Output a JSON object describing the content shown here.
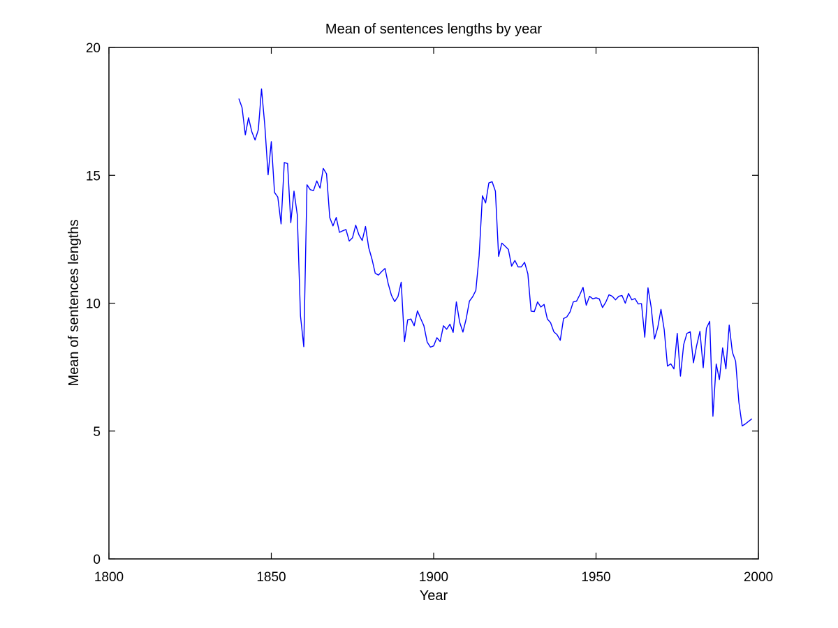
{
  "chart_data": {
    "type": "line",
    "title": "Mean of sentences lengths by year",
    "xlabel": "Year",
    "ylabel": "Mean of sentences lengths",
    "xlim": [
      1800,
      2000
    ],
    "ylim": [
      0,
      20
    ],
    "xticks": [
      1800,
      1850,
      1900,
      1950,
      2000
    ],
    "yticks": [
      0,
      5,
      10,
      15,
      20
    ],
    "xtick_labels": [
      "1800",
      "1850",
      "1900",
      "1950",
      "2000"
    ],
    "ytick_labels": [
      "0",
      "5",
      "10",
      "15",
      "20"
    ],
    "grid": false,
    "line_color": "#0000ff",
    "series": [
      {
        "x": [
          1840,
          1841,
          1842,
          1843,
          1844,
          1845,
          1846,
          1847,
          1848,
          1849,
          1850,
          1851,
          1852,
          1853,
          1854,
          1855,
          1856,
          1857,
          1858,
          1859,
          1860,
          1861,
          1862,
          1863,
          1864,
          1865,
          1866,
          1867,
          1868,
          1869,
          1870,
          1871,
          1872,
          1873,
          1874,
          1875,
          1876,
          1877,
          1878,
          1879,
          1880,
          1881,
          1882,
          1883,
          1884,
          1885,
          1886,
          1887,
          1888,
          1889,
          1890,
          1891,
          1892,
          1893,
          1894,
          1895,
          1896,
          1897,
          1898,
          1899,
          1900,
          1901,
          1902,
          1903,
          1904,
          1905,
          1906,
          1907,
          1908,
          1909,
          1910,
          1911,
          1912,
          1913,
          1914,
          1915,
          1916,
          1917,
          1918,
          1919,
          1920,
          1921,
          1922,
          1923,
          1924,
          1925,
          1926,
          1927,
          1928,
          1929,
          1930,
          1931,
          1932,
          1933,
          1934,
          1935,
          1936,
          1937,
          1938,
          1939,
          1940,
          1941,
          1942,
          1943,
          1944,
          1945,
          1946,
          1947,
          1948,
          1949,
          1950,
          1951,
          1952,
          1953,
          1954,
          1955,
          1956,
          1957,
          1958,
          1959,
          1960,
          1961,
          1962,
          1963,
          1964,
          1965,
          1966,
          1967,
          1968,
          1969,
          1970,
          1971,
          1972,
          1973,
          1974,
          1975,
          1976,
          1977,
          1978,
          1979,
          1980,
          1981,
          1982,
          1983,
          1984,
          1985,
          1986,
          1987,
          1988,
          1989,
          1990,
          1991,
          1992,
          1993,
          1994,
          1995,
          1996,
          1997,
          1998
        ],
        "y": [
          18.0,
          17.65,
          16.58,
          17.25,
          16.7,
          16.38,
          16.78,
          18.38,
          16.95,
          15.02,
          16.32,
          14.33,
          14.15,
          13.1,
          15.5,
          15.46,
          13.15,
          14.38,
          13.46,
          9.5,
          8.3,
          14.63,
          14.44,
          14.4,
          14.78,
          14.5,
          15.27,
          15.06,
          13.35,
          13.02,
          13.35,
          12.77,
          12.83,
          12.88,
          12.43,
          12.56,
          13.05,
          12.67,
          12.45,
          13.0,
          12.17,
          11.72,
          11.17,
          11.1,
          11.24,
          11.36,
          10.76,
          10.31,
          10.06,
          10.26,
          10.82,
          8.5,
          9.35,
          9.38,
          9.12,
          9.7,
          9.4,
          9.12,
          8.48,
          8.28,
          8.33,
          8.65,
          8.5,
          9.12,
          8.98,
          9.18,
          8.86,
          10.05,
          9.26,
          8.87,
          9.38,
          10.08,
          10.25,
          10.5,
          11.85,
          14.2,
          13.92,
          14.7,
          14.75,
          14.38,
          11.83,
          12.35,
          12.23,
          12.1,
          11.45,
          11.67,
          11.42,
          11.42,
          11.6,
          11.15,
          9.69,
          9.67,
          10.05,
          9.85,
          9.95,
          9.38,
          9.24,
          8.88,
          8.77,
          8.55,
          9.4,
          9.46,
          9.66,
          10.05,
          10.08,
          10.33,
          10.62,
          9.92,
          10.27,
          10.17,
          10.21,
          10.17,
          9.83,
          10.04,
          10.33,
          10.27,
          10.13,
          10.27,
          10.3,
          10.0,
          10.38,
          10.13,
          10.18,
          9.97,
          9.98,
          8.67,
          10.6,
          9.84,
          8.6,
          9.05,
          9.76,
          8.97,
          7.54,
          7.63,
          7.43,
          8.82,
          7.15,
          8.38,
          8.82,
          8.88,
          7.67,
          8.34,
          8.9,
          7.48,
          9.02,
          9.29,
          5.58,
          7.62,
          7.01,
          8.25,
          7.43,
          9.14,
          8.08,
          7.73,
          6.12,
          5.2,
          5.28,
          5.38,
          5.48
        ]
      }
    ]
  }
}
